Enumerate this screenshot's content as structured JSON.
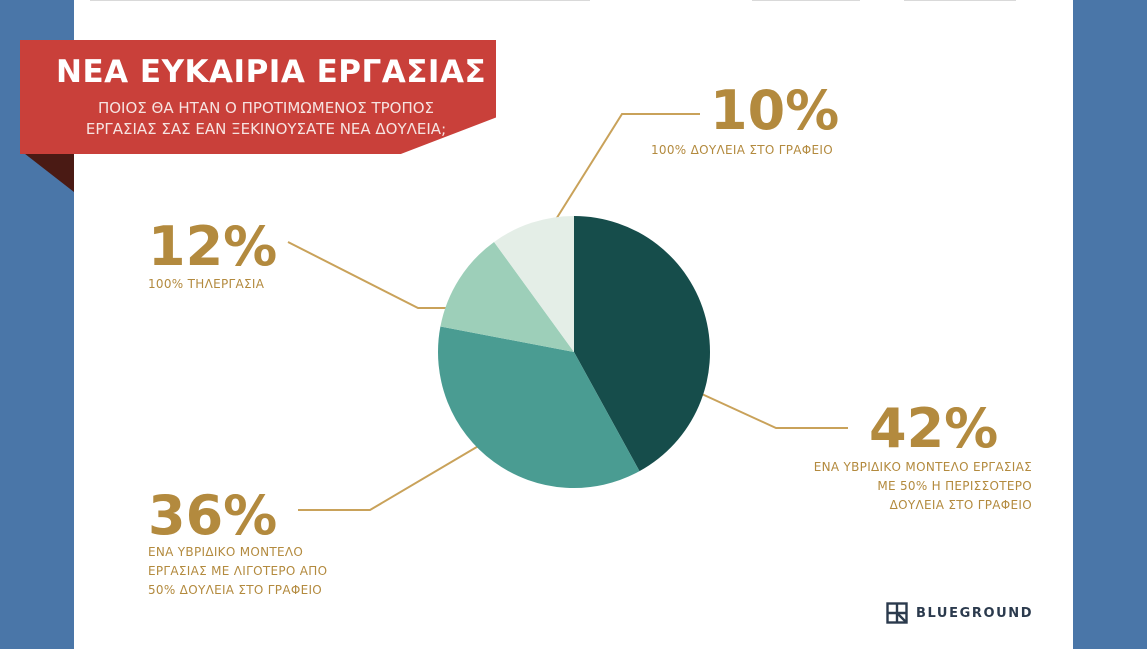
{
  "banner": {
    "title": "ΝΕΑ ΕΥΚΑΙΡΙΑ ΕΡΓΑΣΙΑΣ",
    "subtitle_line1": "ΠΟΙΟΣ ΘΑ ΗΤΑΝ Ο ΠΡΟΤΙΜΩΜΕΝΟΣ ΤΡΟΠΟΣ",
    "subtitle_line2": "ΕΡΓΑΣΙΑΣ ΣΑΣ ΕΑΝ ΞΕΚΙΝΟΥΣΑΤΕ ΝΕΑ ΔΟΥΛΕΙΑ;"
  },
  "chart_data": {
    "type": "pie",
    "title": "ΝΕΑ ΕΥΚΑΙΡΙΑ ΕΡΓΑΣΙΑΣ",
    "subtitle": "ΠΟΙΟΣ ΘΑ ΗΤΑΝ Ο ΠΡΟΤΙΜΩΜΕΝΟΣ ΤΡΟΠΟΣ ΕΡΓΑΣΙΑΣ ΣΑΣ ΕΑΝ ΞΕΚΙΝΟΥΣΑΤΕ ΝΕΑ ΔΟΥΛΕΙΑ;",
    "slices": [
      {
        "label_lines": [
          "ΕΝΑ ΥΒΡΙΔΙΚΟ ΜΟΝΤΕΛΟ ΕΡΓΑΣΙΑΣ",
          "ΜΕ 50% Η ΠΕΡΙΣΣΟΤΕΡΟ",
          "ΔΟΥΛΕΙΑ ΣΤΟ ΓΡΑΦΕΙΟ"
        ],
        "value": 42,
        "value_label": "42%",
        "color": "#164d4b"
      },
      {
        "label_lines": [
          "ΕΝΑ ΥΒΡΙΔΙΚΟ ΜΟΝΤΕΛΟ",
          "ΕΡΓΑΣΙΑΣ ΜΕ ΛΙΓΟΤΕΡΟ ΑΠΟ",
          "50% ΔΟΥΛΕΙΑ ΣΤΟ ΓΡΑΦΕΙΟ"
        ],
        "value": 36,
        "value_label": "36%",
        "color": "#4a9c92"
      },
      {
        "label_lines": [
          "100% ΤΗΛΕΡΓΑΣΙΑ"
        ],
        "value": 12,
        "value_label": "12%",
        "color": "#9dcfb9"
      },
      {
        "label_lines": [
          "100% ΔΟΥΛΕΙΑ ΣΤΟ ΓΡΑΦΕΙΟ"
        ],
        "value": 10,
        "value_label": "10%",
        "color": "#e4eee7"
      }
    ],
    "label_color": "#b38a3e",
    "leader_color": "#c9a25a"
  },
  "logo": {
    "text": "BLUEGROUND",
    "icon": "blueground-logo-icon"
  }
}
